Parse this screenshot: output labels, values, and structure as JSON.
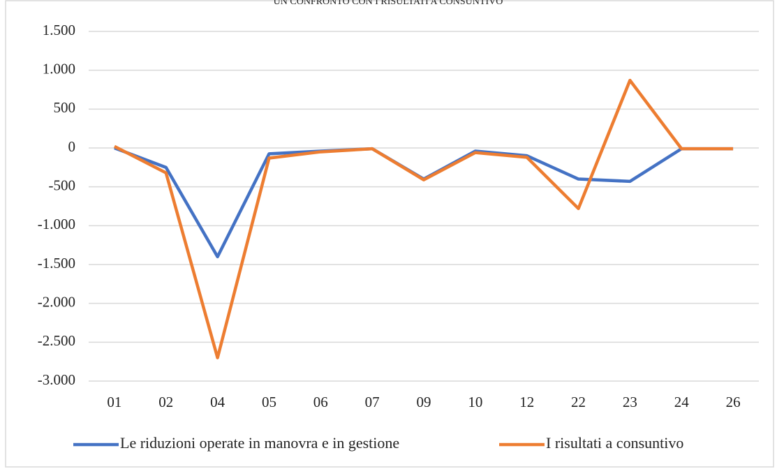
{
  "chart_data": {
    "type": "line",
    "title": "UN CONFRONTO CON I RISULTATI A CONSUNTIVO",
    "categories": [
      "01",
      "02",
      "04",
      "05",
      "06",
      "07",
      "09",
      "10",
      "12",
      "22",
      "23",
      "24",
      "26"
    ],
    "series": [
      {
        "name": "Le riduzioni operate in manovra e in gestione",
        "color": "#4472c4",
        "values": [
          0,
          -250,
          -1400,
          -75,
          -40,
          -10,
          -400,
          -40,
          -100,
          -400,
          -430,
          -10,
          -10
        ]
      },
      {
        "name": "I risultati a consuntivo",
        "color": "#ed7d31",
        "values": [
          20,
          -320,
          -2700,
          -130,
          -50,
          -10,
          -410,
          -60,
          -120,
          -780,
          870,
          -10,
          -10
        ]
      }
    ],
    "ylim": [
      -3000,
      1500
    ],
    "yticks": [
      {
        "value": -3000,
        "label": "-3.000"
      },
      {
        "value": -2500,
        "label": "-2.500"
      },
      {
        "value": -2000,
        "label": "-2.000"
      },
      {
        "value": -1500,
        "label": "-1.500"
      },
      {
        "value": -1000,
        "label": "-1.000"
      },
      -500,
      0,
      500,
      {
        "value": 1000,
        "label": "1.000"
      },
      {
        "value": 1500,
        "label": "1.500"
      }
    ],
    "grid": true,
    "legend": "bottom"
  }
}
